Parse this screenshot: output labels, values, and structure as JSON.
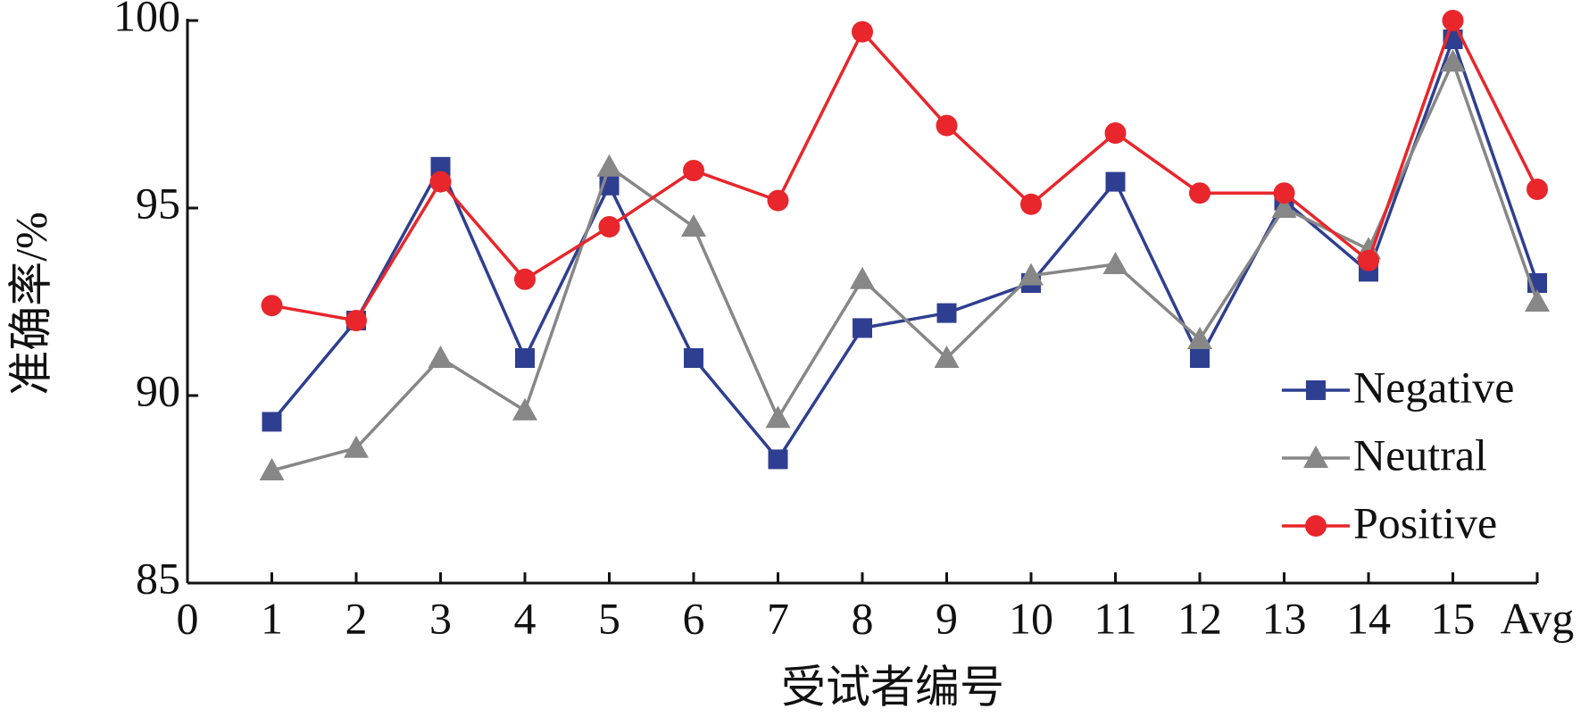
{
  "chart_data": {
    "type": "line",
    "x_label": "受试者编号",
    "y_label": "准确率/%",
    "categories": [
      "0",
      "1",
      "2",
      "3",
      "4",
      "5",
      "6",
      "7",
      "8",
      "9",
      "10",
      "11",
      "12",
      "13",
      "14",
      "15",
      "Avg"
    ],
    "ylim": [
      85,
      100
    ],
    "yticks": [
      85,
      90,
      95,
      100
    ],
    "legend": "lower right",
    "series": [
      {
        "name": "Negative",
        "color": "#2e3f91",
        "marker": "square",
        "values": [
          null,
          89.3,
          92.0,
          96.1,
          91.0,
          95.6,
          91.0,
          88.3,
          91.8,
          92.2,
          93.0,
          95.7,
          91.0,
          95.2,
          93.3,
          99.5,
          93.0
        ]
      },
      {
        "name": "Neutral",
        "color": "#878787",
        "marker": "triangle",
        "values": [
          null,
          88.0,
          88.6,
          91.0,
          89.6,
          96.1,
          94.5,
          89.4,
          93.1,
          91.0,
          93.2,
          93.5,
          91.5,
          95.0,
          93.9,
          98.9,
          92.5
        ]
      },
      {
        "name": "Positive",
        "color": "#e8262b",
        "marker": "circle",
        "values": [
          null,
          92.4,
          92.0,
          95.7,
          93.1,
          94.5,
          96.0,
          95.2,
          99.7,
          97.2,
          95.1,
          97.0,
          95.4,
          95.4,
          93.6,
          100.0,
          95.5
        ]
      }
    ]
  }
}
